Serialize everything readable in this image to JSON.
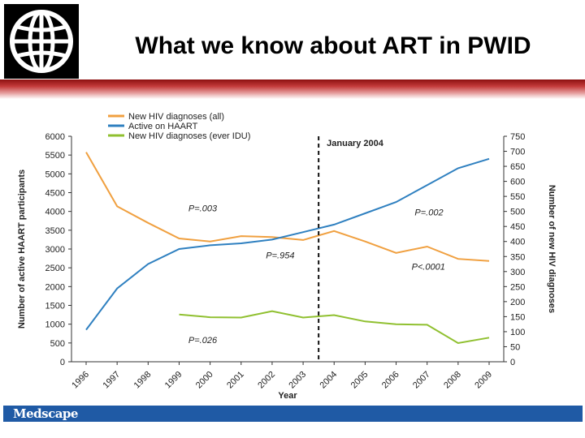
{
  "slide": {
    "title": "What we know about ART in PWID",
    "footer_brand": "Medscape",
    "colors": {
      "red_bar": "#b02020",
      "footer_bar": "#1f5aa5"
    },
    "logo_icon": "globe-icon"
  },
  "chart_data": {
    "type": "line",
    "x": [
      1996,
      1997,
      1998,
      1999,
      2000,
      2001,
      2002,
      2003,
      2004,
      2005,
      2006,
      2007,
      2008,
      2009
    ],
    "xlabel": "Year",
    "ylabel_left": "Number of active HAART participants",
    "ylabel_right": "Number of new HIV diagnoses",
    "ylim_left": [
      0,
      6000
    ],
    "ylim_right": [
      0,
      750
    ],
    "yticks_left": [
      0,
      500,
      1000,
      1500,
      2000,
      2500,
      3000,
      3500,
      4000,
      4500,
      5000,
      5500,
      6000
    ],
    "yticks_right": [
      0,
      50,
      100,
      150,
      200,
      250,
      300,
      350,
      400,
      450,
      500,
      550,
      600,
      650,
      700,
      750
    ],
    "series": [
      {
        "name": "New HIV diagnoses (all)",
        "axis": "right",
        "color": "#f0a040",
        "values": [
          697,
          517,
          462,
          410,
          400,
          418,
          415,
          405,
          435,
          400,
          362,
          383,
          342,
          335
        ]
      },
      {
        "name": "Active on HAART",
        "axis": "left",
        "color": "#2f80c0",
        "values": [
          850,
          1950,
          2600,
          3000,
          3100,
          3150,
          3250,
          3450,
          3650,
          3950,
          4250,
          4700,
          5150,
          5400
        ]
      },
      {
        "name": "New HIV diagnoses (ever IDU)",
        "axis": "right",
        "color": "#90c030",
        "values": [
          null,
          null,
          null,
          157,
          148,
          147,
          168,
          147,
          155,
          134,
          125,
          123,
          62,
          80
        ]
      }
    ],
    "annotations": [
      {
        "text": "January 2004",
        "x": 2003.5,
        "y": 750,
        "axis": "right",
        "style": "dashed-vline"
      },
      {
        "text": "P=.003",
        "x": 1999.3,
        "y": 4000,
        "axis": "left"
      },
      {
        "text": "P=.954",
        "x": 2001.8,
        "y": 2750,
        "axis": "left"
      },
      {
        "text": "P=.026",
        "x": 1999.3,
        "y": 500,
        "axis": "left"
      },
      {
        "text": "P=.002",
        "x": 2006.6,
        "y": 3900,
        "axis": "left"
      },
      {
        "text": "P<.0001",
        "x": 2006.5,
        "y": 2450,
        "axis": "left"
      }
    ],
    "legend": "top-left",
    "grid": false
  }
}
